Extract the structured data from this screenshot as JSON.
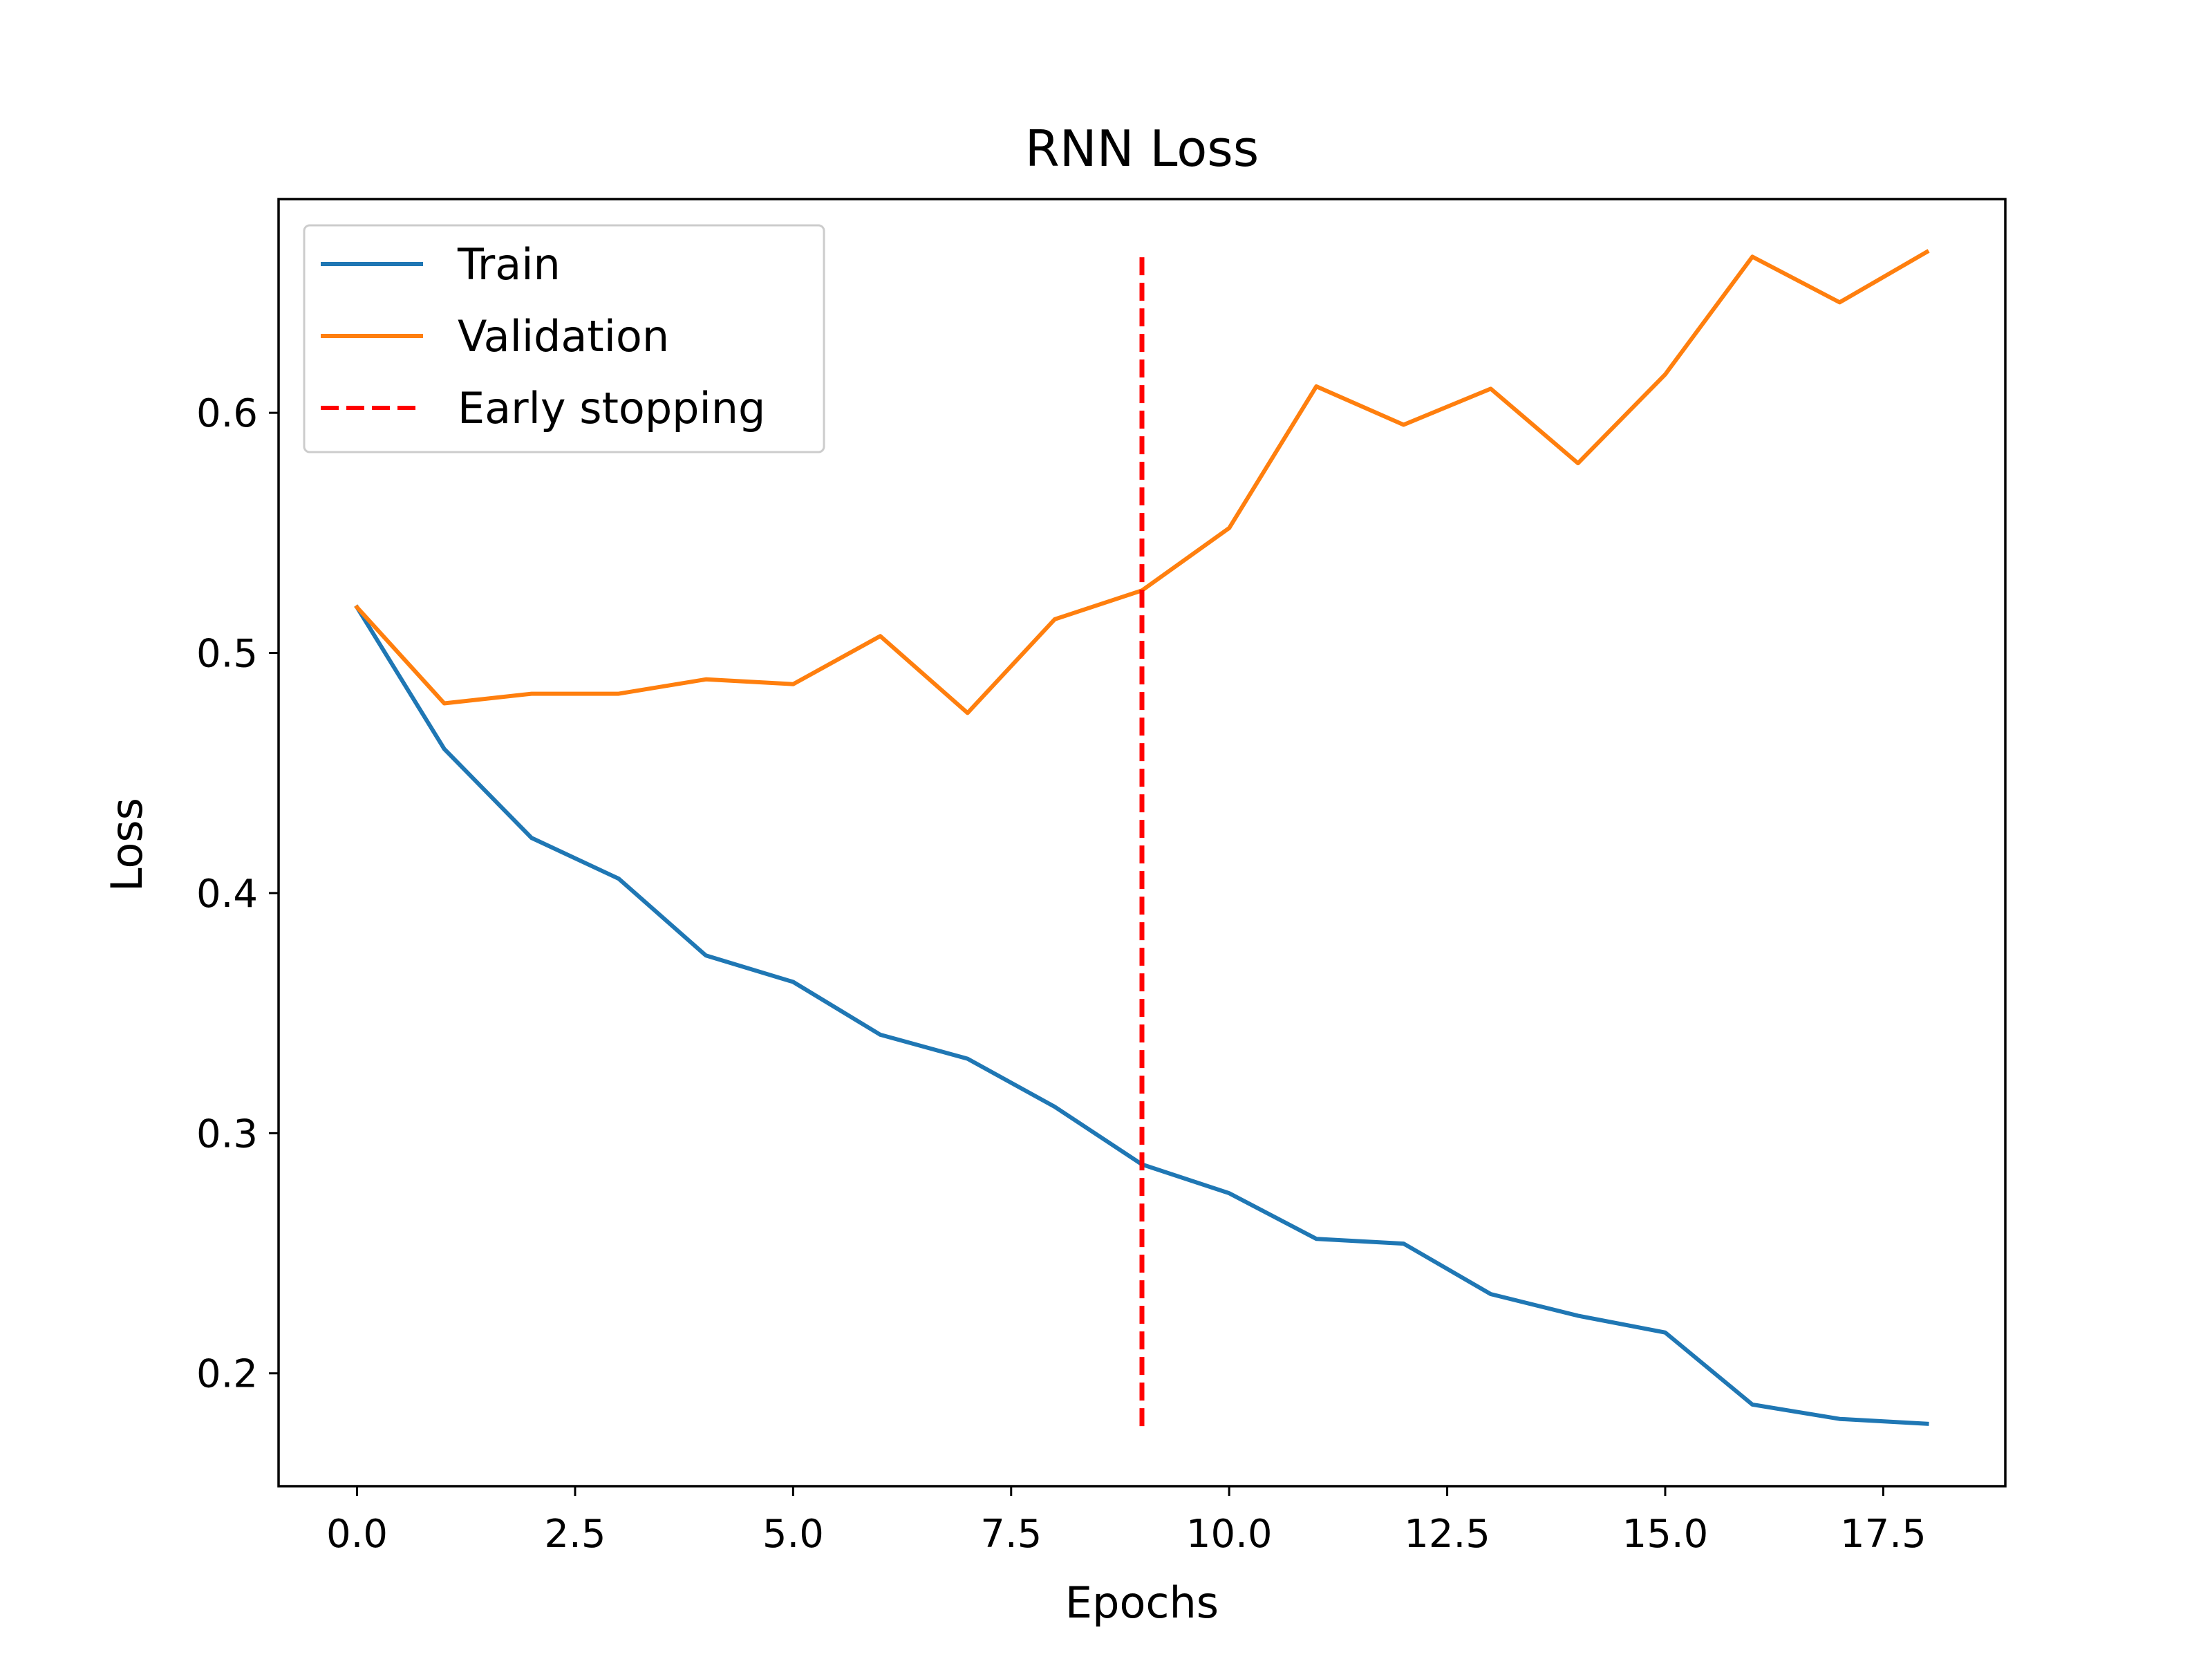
{
  "chart_data": {
    "type": "line",
    "title": "RNN Loss",
    "xlabel": "Epochs",
    "ylabel": "Loss",
    "xlim": [
      -0.9,
      18.9
    ],
    "ylim": [
      0.153,
      0.689
    ],
    "xticks": [
      0.0,
      2.5,
      5.0,
      7.5,
      10.0,
      12.5,
      15.0,
      17.5
    ],
    "xtick_labels": [
      "0.0",
      "2.5",
      "5.0",
      "7.5",
      "10.0",
      "12.5",
      "15.0",
      "17.5"
    ],
    "yticks": [
      0.2,
      0.3,
      0.4,
      0.5,
      0.6
    ],
    "ytick_labels": [
      "0.2",
      "0.3",
      "0.4",
      "0.5",
      "0.6"
    ],
    "grid": false,
    "legend_position": "upper-left",
    "x": [
      0,
      1,
      2,
      3,
      4,
      5,
      6,
      7,
      8,
      9,
      10,
      11,
      12,
      13,
      14,
      15,
      16,
      17,
      18
    ],
    "series": [
      {
        "name": "Train",
        "color": "#1f77b4",
        "values": [
          0.519,
          0.46,
          0.423,
          0.406,
          0.374,
          0.363,
          0.341,
          0.331,
          0.311,
          0.287,
          0.275,
          0.256,
          0.254,
          0.233,
          0.224,
          0.217,
          0.187,
          0.181,
          0.179
        ]
      },
      {
        "name": "Validation",
        "color": "#ff7f0e",
        "values": [
          0.519,
          0.479,
          0.483,
          0.483,
          0.489,
          0.487,
          0.507,
          0.475,
          0.514,
          0.526,
          0.552,
          0.611,
          0.595,
          0.61,
          0.579,
          0.616,
          0.665,
          0.646,
          0.667
        ]
      }
    ],
    "vline": {
      "name": "Early stopping",
      "x": 9,
      "y_range": [
        0.178,
        0.667
      ],
      "color": "#ff0000",
      "style": "dashed"
    }
  }
}
